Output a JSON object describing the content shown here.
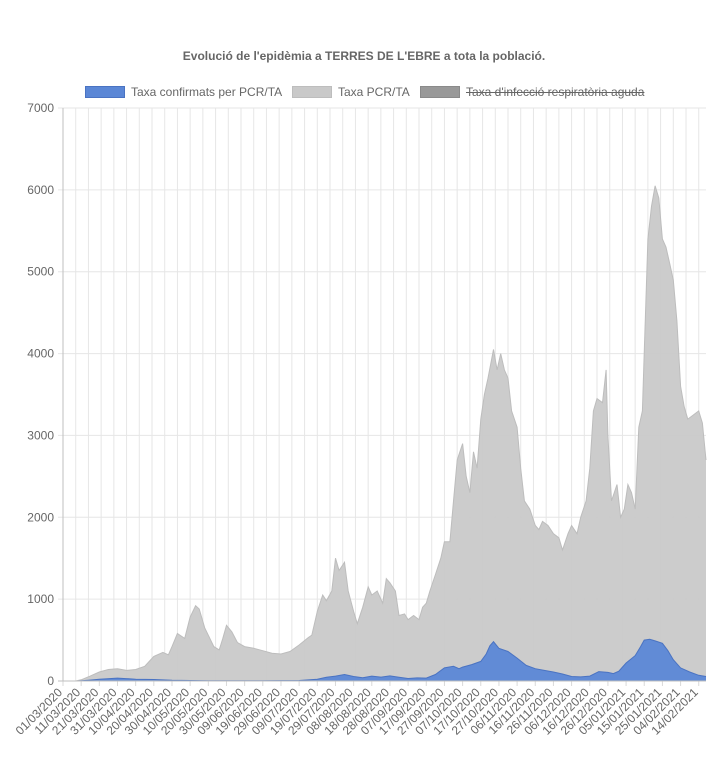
{
  "chart_data": {
    "type": "area",
    "title": "Evolució de l'epidèmia a TERRES DE L'EBRE a tota la població.",
    "xlabel": "",
    "ylabel": "",
    "ylim": [
      0,
      7000
    ],
    "y_ticks": [
      0,
      1000,
      2000,
      3000,
      4000,
      5000,
      6000,
      7000
    ],
    "x_ticks": [
      "01/03/2020",
      "11/03/2020",
      "21/03/2020",
      "31/03/2020",
      "10/04/2020",
      "20/04/2020",
      "30/04/2020",
      "10/05/2020",
      "20/05/2020",
      "30/05/2020",
      "09/06/2020",
      "19/06/2020",
      "29/06/2020",
      "09/07/2020",
      "19/07/2020",
      "29/07/2020",
      "08/08/2020",
      "18/08/2020",
      "28/08/2020",
      "07/09/2020",
      "17/09/2020",
      "27/09/2020",
      "07/10/2020",
      "17/10/2020",
      "27/10/2020",
      "06/11/2020",
      "16/11/2020",
      "26/11/2020",
      "06/12/2020",
      "16/12/2020",
      "26/12/2020",
      "05/01/2021",
      "15/01/2021",
      "25/01/2021",
      "04/02/2021",
      "14/02/2021"
    ],
    "x_range": [
      "01/03/2020",
      "18/02/2021"
    ],
    "grid": true,
    "legend_position": "top",
    "series": [
      {
        "name": "Taxa confirmats per PCR/TA",
        "color": "#5b87d6",
        "border_color": "#4a73c2",
        "hidden": false,
        "points": [
          [
            "01/03/2020",
            0
          ],
          [
            "09/03/2020",
            0
          ],
          [
            "15/03/2020",
            10
          ],
          [
            "21/03/2020",
            22
          ],
          [
            "31/03/2020",
            35
          ],
          [
            "10/04/2020",
            22
          ],
          [
            "20/04/2020",
            18
          ],
          [
            "30/04/2020",
            8
          ],
          [
            "20/05/2020",
            4
          ],
          [
            "19/06/2020",
            3
          ],
          [
            "09/07/2020",
            6
          ],
          [
            "19/07/2020",
            22
          ],
          [
            "24/07/2020",
            45
          ],
          [
            "29/07/2020",
            60
          ],
          [
            "03/08/2020",
            80
          ],
          [
            "08/08/2020",
            55
          ],
          [
            "13/08/2020",
            40
          ],
          [
            "18/08/2020",
            60
          ],
          [
            "23/08/2020",
            48
          ],
          [
            "28/08/2020",
            62
          ],
          [
            "02/09/2020",
            45
          ],
          [
            "07/09/2020",
            30
          ],
          [
            "12/09/2020",
            38
          ],
          [
            "17/09/2020",
            35
          ],
          [
            "22/09/2020",
            80
          ],
          [
            "27/09/2020",
            160
          ],
          [
            "02/10/2020",
            180
          ],
          [
            "05/10/2020",
            150
          ],
          [
            "07/10/2020",
            170
          ],
          [
            "12/10/2020",
            200
          ],
          [
            "17/10/2020",
            240
          ],
          [
            "20/10/2020",
            330
          ],
          [
            "22/10/2020",
            430
          ],
          [
            "24/10/2020",
            480
          ],
          [
            "27/10/2020",
            400
          ],
          [
            "01/11/2020",
            360
          ],
          [
            "06/11/2020",
            280
          ],
          [
            "11/11/2020",
            190
          ],
          [
            "16/11/2020",
            150
          ],
          [
            "21/11/2020",
            130
          ],
          [
            "26/11/2020",
            110
          ],
          [
            "01/12/2020",
            85
          ],
          [
            "06/12/2020",
            55
          ],
          [
            "11/12/2020",
            50
          ],
          [
            "16/12/2020",
            60
          ],
          [
            "21/12/2020",
            115
          ],
          [
            "26/12/2020",
            105
          ],
          [
            "29/12/2020",
            90
          ],
          [
            "01/01/2021",
            120
          ],
          [
            "05/01/2021",
            220
          ],
          [
            "10/01/2021",
            310
          ],
          [
            "13/01/2021",
            420
          ],
          [
            "15/01/2021",
            500
          ],
          [
            "18/01/2021",
            510
          ],
          [
            "21/01/2021",
            490
          ],
          [
            "25/01/2021",
            460
          ],
          [
            "28/01/2021",
            370
          ],
          [
            "31/01/2021",
            260
          ],
          [
            "04/02/2021",
            160
          ],
          [
            "09/02/2021",
            110
          ],
          [
            "14/02/2021",
            70
          ],
          [
            "18/02/2021",
            55
          ]
        ]
      },
      {
        "name": "Taxa PCR/TA",
        "color": "#c9c9c9",
        "border_color": "#bdbdbd",
        "hidden": false,
        "points": [
          [
            "01/03/2020",
            0
          ],
          [
            "08/03/2020",
            0
          ],
          [
            "11/03/2020",
            15
          ],
          [
            "16/03/2020",
            60
          ],
          [
            "21/03/2020",
            110
          ],
          [
            "26/03/2020",
            140
          ],
          [
            "31/03/2020",
            150
          ],
          [
            "05/04/2020",
            130
          ],
          [
            "10/04/2020",
            140
          ],
          [
            "15/04/2020",
            180
          ],
          [
            "20/04/2020",
            300
          ],
          [
            "25/04/2020",
            350
          ],
          [
            "28/04/2020",
            320
          ],
          [
            "30/04/2020",
            420
          ],
          [
            "03/05/2020",
            580
          ],
          [
            "07/05/2020",
            520
          ],
          [
            "10/05/2020",
            780
          ],
          [
            "13/05/2020",
            920
          ],
          [
            "15/05/2020",
            880
          ],
          [
            "18/05/2020",
            650
          ],
          [
            "20/05/2020",
            560
          ],
          [
            "23/05/2020",
            420
          ],
          [
            "26/05/2020",
            380
          ],
          [
            "28/05/2020",
            520
          ],
          [
            "30/05/2020",
            680
          ],
          [
            "02/06/2020",
            600
          ],
          [
            "05/06/2020",
            470
          ],
          [
            "09/06/2020",
            420
          ],
          [
            "14/06/2020",
            400
          ],
          [
            "19/06/2020",
            370
          ],
          [
            "24/06/2020",
            340
          ],
          [
            "29/06/2020",
            330
          ],
          [
            "04/07/2020",
            360
          ],
          [
            "09/07/2020",
            440
          ],
          [
            "14/07/2020",
            530
          ],
          [
            "16/07/2020",
            560
          ],
          [
            "19/07/2020",
            850
          ],
          [
            "22/07/2020",
            1050
          ],
          [
            "24/07/2020",
            980
          ],
          [
            "27/07/2020",
            1100
          ],
          [
            "29/07/2020",
            1500
          ],
          [
            "31/07/2020",
            1350
          ],
          [
            "03/08/2020",
            1450
          ],
          [
            "05/08/2020",
            1100
          ],
          [
            "08/08/2020",
            850
          ],
          [
            "10/08/2020",
            700
          ],
          [
            "13/08/2020",
            900
          ],
          [
            "16/08/2020",
            1150
          ],
          [
            "18/08/2020",
            1050
          ],
          [
            "21/08/2020",
            1100
          ],
          [
            "24/08/2020",
            950
          ],
          [
            "26/08/2020",
            1250
          ],
          [
            "28/08/2020",
            1200
          ],
          [
            "31/08/2020",
            1100
          ],
          [
            "02/09/2020",
            800
          ],
          [
            "05/09/2020",
            820
          ],
          [
            "07/09/2020",
            750
          ],
          [
            "10/09/2020",
            800
          ],
          [
            "13/09/2020",
            750
          ],
          [
            "15/09/2020",
            900
          ],
          [
            "17/09/2020",
            950
          ],
          [
            "19/09/2020",
            1100
          ],
          [
            "22/09/2020",
            1300
          ],
          [
            "25/09/2020",
            1500
          ],
          [
            "27/09/2020",
            1700
          ],
          [
            "30/09/2020",
            1700
          ],
          [
            "02/10/2020",
            2200
          ],
          [
            "04/10/2020",
            2700
          ],
          [
            "07/10/2020",
            2900
          ],
          [
            "09/10/2020",
            2500
          ],
          [
            "11/10/2020",
            2300
          ],
          [
            "13/10/2020",
            2800
          ],
          [
            "15/10/2020",
            2600
          ],
          [
            "17/10/2020",
            3200
          ],
          [
            "19/10/2020",
            3500
          ],
          [
            "21/10/2020",
            3700
          ],
          [
            "24/10/2020",
            4050
          ],
          [
            "26/10/2020",
            3800
          ],
          [
            "28/10/2020",
            4000
          ],
          [
            "30/10/2020",
            3800
          ],
          [
            "01/11/2020",
            3700
          ],
          [
            "03/11/2020",
            3300
          ],
          [
            "06/11/2020",
            3100
          ],
          [
            "08/11/2020",
            2600
          ],
          [
            "10/11/2020",
            2200
          ],
          [
            "13/11/2020",
            2100
          ],
          [
            "16/11/2020",
            1900
          ],
          [
            "18/11/2020",
            1850
          ],
          [
            "20/11/2020",
            1950
          ],
          [
            "23/11/2020",
            1900
          ],
          [
            "26/11/2020",
            1800
          ],
          [
            "29/11/2020",
            1750
          ],
          [
            "01/12/2020",
            1600
          ],
          [
            "04/12/2020",
            1800
          ],
          [
            "06/12/2020",
            1900
          ],
          [
            "09/12/2020",
            1800
          ],
          [
            "11/12/2020",
            2000
          ],
          [
            "14/12/2020",
            2200
          ],
          [
            "16/12/2020",
            2600
          ],
          [
            "18/12/2020",
            3300
          ],
          [
            "20/12/2020",
            3450
          ],
          [
            "23/12/2020",
            3400
          ],
          [
            "25/12/2020",
            3800
          ],
          [
            "26/12/2020",
            3000
          ],
          [
            "28/12/2020",
            2200
          ],
          [
            "31/12/2020",
            2400
          ],
          [
            "02/01/2021",
            2000
          ],
          [
            "04/01/2021",
            2100
          ],
          [
            "06/01/2021",
            2400
          ],
          [
            "08/01/2021",
            2300
          ],
          [
            "10/01/2021",
            2100
          ],
          [
            "12/01/2021",
            3100
          ],
          [
            "14/01/2021",
            3300
          ],
          [
            "15/01/2021",
            4000
          ],
          [
            "17/01/2021",
            5400
          ],
          [
            "19/01/2021",
            5800
          ],
          [
            "21/01/2021",
            6050
          ],
          [
            "23/01/2021",
            5900
          ],
          [
            "25/01/2021",
            5400
          ],
          [
            "27/01/2021",
            5300
          ],
          [
            "29/01/2021",
            5100
          ],
          [
            "31/01/2021",
            4900
          ],
          [
            "02/02/2021",
            4400
          ],
          [
            "04/02/2021",
            3600
          ],
          [
            "06/02/2021",
            3350
          ],
          [
            "08/02/2021",
            3200
          ],
          [
            "11/02/2021",
            3250
          ],
          [
            "14/02/2021",
            3300
          ],
          [
            "16/02/2021",
            3150
          ],
          [
            "18/02/2021",
            2700
          ]
        ]
      },
      {
        "name": "Taxa d'infecció respiratòria aguda",
        "color": "#999999",
        "border_color": "#8a8a8a",
        "hidden": true,
        "points": []
      }
    ]
  }
}
